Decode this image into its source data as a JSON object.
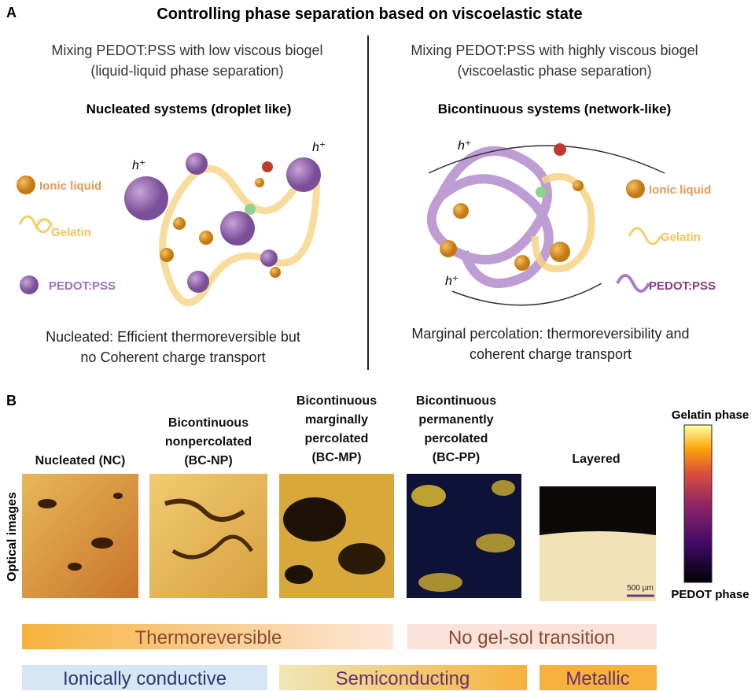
{
  "panel_a": {
    "label": "A",
    "title": "Controlling phase separation based on viscoelastic state",
    "left": {
      "intro": [
        "Mixing PEDOT:PSS with low viscous biogel",
        "(liquid-liquid phase separation)"
      ],
      "heading": "Nucleated systems (droplet like)",
      "legend": [
        "Ionic liquid",
        "Gelatin",
        "PEDOT:PSS"
      ],
      "annotations": [
        "h⁺",
        "h⁺"
      ],
      "caption": [
        "Nucleated: Efficient thermoreversible but",
        "no Coherent charge transport"
      ]
    },
    "right": {
      "intro": [
        "Mixing PEDOT:PSS with highly viscous biogel",
        "(viscoelastic phase separation)"
      ],
      "heading": "Bicontinuous systems (network-like)",
      "legend": [
        "Ionic liquid",
        "Gelatin",
        "PEDOT:PSS"
      ],
      "annotations": [
        "h⁺",
        "h⁺"
      ],
      "caption": [
        "Marginal percolation: thermoreversibility and",
        "coherent charge transport"
      ]
    }
  },
  "panel_b": {
    "label": "B",
    "axis_label": "Optical images",
    "images": [
      {
        "label": [
          "Nucleated (NC)"
        ]
      },
      {
        "label": [
          "Bicontinuous",
          "nonpercolated",
          "(BC-NP)"
        ]
      },
      {
        "label": [
          "Bicontinuous",
          "marginally",
          "percolated",
          "(BC-MP)"
        ]
      },
      {
        "label": [
          "Bicontinuous",
          "permanently",
          "percolated",
          "(BC-PP)"
        ]
      },
      {
        "label": [
          "Layered"
        ]
      }
    ],
    "scale_bar": "500 µm",
    "colorbar": {
      "top": "Gelatin phase",
      "bottom": "PEDOT phase"
    },
    "bands": [
      "Thermoreversible",
      "No gel-sol transition",
      "Ionically conductive",
      "Semiconducting",
      "Metallic"
    ]
  }
}
